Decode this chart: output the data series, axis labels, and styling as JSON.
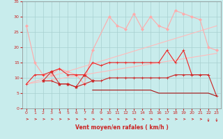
{
  "background_color": "#c8ecec",
  "grid_color": "#a8d0d0",
  "xlabel": "Vent moyen/en rafales ( km/h )",
  "xlim": [
    -0.5,
    23.5
  ],
  "ylim": [
    0,
    35
  ],
  "yticks": [
    0,
    5,
    10,
    15,
    20,
    25,
    30,
    35
  ],
  "xticks": [
    0,
    1,
    2,
    3,
    4,
    5,
    6,
    7,
    8,
    9,
    10,
    11,
    12,
    13,
    14,
    15,
    16,
    17,
    18,
    19,
    20,
    21,
    22,
    23
  ],
  "series": [
    {
      "x": [
        0,
        23
      ],
      "y": [
        8,
        27
      ],
      "color": "#ffbbbb",
      "linewidth": 0.8,
      "marker": null
    },
    {
      "x": [
        0,
        23
      ],
      "y": [
        8,
        18
      ],
      "color": "#ffbbbb",
      "linewidth": 0.8,
      "marker": null
    },
    {
      "x": [
        0,
        1,
        2,
        3,
        4,
        5,
        6,
        7,
        8,
        10,
        11,
        12,
        13,
        14,
        15,
        16,
        17,
        18,
        19,
        20,
        21,
        22,
        23
      ],
      "y": [
        27,
        15,
        11,
        11,
        13,
        12,
        11,
        8,
        19,
        30,
        27,
        26,
        31,
        26,
        30,
        27,
        26,
        32,
        31,
        30,
        29,
        20,
        19
      ],
      "color": "#ffaaaa",
      "linewidth": 0.8,
      "marker": "D",
      "markersize": 2.0
    },
    {
      "x": [
        2,
        3,
        4,
        5,
        6,
        7,
        8
      ],
      "y": [
        9,
        12,
        8,
        8,
        7,
        11,
        9
      ],
      "color": "#cc3333",
      "linewidth": 0.8,
      "marker": "*",
      "markersize": 3.5
    },
    {
      "x": [
        0,
        1,
        2,
        3,
        4,
        5,
        6,
        7,
        8,
        9,
        10,
        11,
        12,
        13,
        14,
        15,
        16,
        17,
        18,
        19,
        20,
        21,
        22
      ],
      "y": [
        8,
        11,
        11,
        12,
        13,
        11,
        11,
        11,
        15,
        14,
        15,
        15,
        15,
        15,
        15,
        15,
        15,
        19,
        15,
        19,
        11,
        11,
        11
      ],
      "color": "#ee2222",
      "linewidth": 0.8,
      "marker": "+",
      "markersize": 3.5
    },
    {
      "x": [
        2,
        3,
        4,
        5,
        6,
        7,
        8,
        9,
        10,
        11,
        12,
        13,
        14,
        15,
        16,
        17,
        18,
        19,
        20,
        21,
        22,
        23
      ],
      "y": [
        9,
        9,
        8,
        8,
        7,
        8,
        9,
        9,
        10,
        10,
        10,
        10,
        10,
        10,
        10,
        10,
        11,
        11,
        11,
        11,
        11,
        4
      ],
      "color": "#cc2222",
      "linewidth": 0.8,
      "marker": "+",
      "markersize": 2.5
    },
    {
      "x": [
        8,
        9,
        10,
        11,
        12,
        13,
        14,
        15,
        16,
        17,
        18,
        19,
        20,
        21,
        22,
        23
      ],
      "y": [
        6,
        6,
        6,
        6,
        6,
        6,
        6,
        6,
        5,
        5,
        5,
        5,
        5,
        5,
        5,
        4
      ],
      "color": "#aa1111",
      "linewidth": 0.8,
      "marker": null
    }
  ],
  "arrow_color": "#cc2222",
  "xlabel_color": "#cc2222",
  "tick_color": "#cc2222",
  "spine_color": "#888888"
}
